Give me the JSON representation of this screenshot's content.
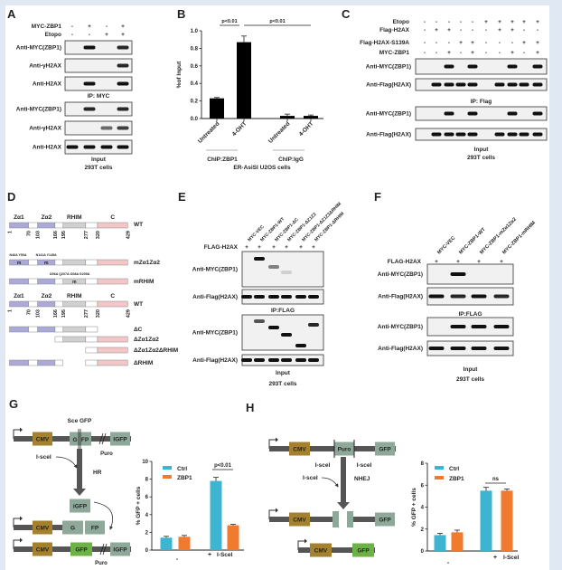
{
  "panels": {
    "A": {
      "label": "A",
      "conditions": [
        {
          "name": "MYC-ZBP1",
          "values": [
            "-",
            "+",
            "-",
            "+"
          ]
        },
        {
          "name": "Etopo",
          "values": [
            "-",
            "-",
            "+",
            "+"
          ]
        }
      ],
      "ip_blots": [
        {
          "label": "Anti-MYC(ZBP1)",
          "bands": [
            0,
            1,
            0,
            0.9
          ]
        },
        {
          "label": "Anti-γH2AX",
          "bands": [
            0,
            0,
            0,
            0.9
          ]
        },
        {
          "label": "Anti-H2AX",
          "bands": [
            0,
            1,
            0,
            1
          ]
        }
      ],
      "ip_caption": "IP: MYC",
      "input_blots": [
        {
          "label": "Anti-MYC(ZBP1)",
          "bands": [
            0,
            0.9,
            0,
            0.9
          ]
        },
        {
          "label": "Anti-γH2AX",
          "bands": [
            0,
            0,
            0.6,
            0.8
          ]
        },
        {
          "label": "Anti-H2AX",
          "bands": [
            1,
            1,
            1,
            1
          ]
        }
      ],
      "input_caption": "Input",
      "cells": "293T cells"
    },
    "B": {
      "label": "B",
      "group_labels": [
        "ChIP:ZBP1",
        "ChIP:IgG"
      ],
      "cells": "ER-AsiSI U2OS cells",
      "significance": [
        "p<0.01",
        "p<0.01"
      ]
    },
    "C": {
      "label": "C",
      "conditions": [
        {
          "name": "Etopo",
          "values": [
            "-",
            "-",
            "-",
            "-",
            "-",
            "+",
            "+",
            "+",
            "+",
            "+"
          ]
        },
        {
          "name": "Flag-H2AX",
          "values": [
            "-",
            "+",
            "+",
            "-",
            "-",
            "-",
            "+",
            "+",
            "-",
            "-"
          ]
        },
        {
          "name": "Flag-H2AX-S139A",
          "values": [
            "-",
            "-",
            "-",
            "+",
            "+",
            "-",
            "-",
            "-",
            "+",
            "+"
          ]
        },
        {
          "name": "MYC-ZBP1",
          "values": [
            "-",
            "-",
            "+",
            "-",
            "+",
            "-",
            "-",
            "+",
            "-",
            "+"
          ]
        }
      ],
      "ip_blots": [
        {
          "label": "Anti-MYC(ZBP1)",
          "bands": [
            0,
            0,
            1,
            0,
            1,
            0,
            0,
            1,
            0,
            1
          ]
        },
        {
          "label": "Anti-Flag(H2AX)",
          "bands": [
            0,
            1,
            1,
            1,
            1,
            0,
            1,
            1,
            1,
            1
          ]
        }
      ],
      "ip_caption": "IP: Flag",
      "input_blots": [
        {
          "label": "Anti-MYC(ZBP1)",
          "bands": [
            0,
            0,
            1,
            0,
            1,
            0,
            0,
            1,
            0,
            1
          ]
        },
        {
          "label": "Anti-Flag(H2AX)",
          "bands": [
            0,
            1,
            1,
            1,
            1,
            0,
            1,
            1,
            1,
            1
          ]
        }
      ],
      "input_caption": "Input",
      "cells": "293T cells"
    },
    "D": {
      "label": "D",
      "domain_names": [
        "Zα1",
        "Zα2",
        "RHIM",
        "C"
      ],
      "boundaries": [
        "1",
        "70",
        "103",
        "166",
        "195",
        "277",
        "320",
        "429"
      ],
      "colors": {
        "zalpha": "#aaa9d8",
        "rhim": "#d0d0d0",
        "c": "#f3c6c8",
        "linker": "#ffffff"
      },
      "mutant_mark": "m",
      "mutations": {
        "za1": "N46A Y50A",
        "za2": "N141A Y145A",
        "rhim": "I206A Q207A I208A G209A"
      },
      "constructs": [
        {
          "name": "WT"
        },
        {
          "name": "mZα1Zα2"
        },
        {
          "name": "mRHIM"
        },
        {
          "name": "WT"
        },
        {
          "name": "ΔC"
        },
        {
          "name": "ΔZα1Zα2"
        },
        {
          "name": "ΔZα1Zα2ΔRHIM"
        },
        {
          "name": "ΔRHIM"
        }
      ]
    },
    "E": {
      "label": "E",
      "lanes": [
        "MYC-VEC",
        "MYC-ZBP1-WT",
        "MYC-ZBP1-ΔC",
        "MYC-ZBP1-ΔZ1Z2",
        "MYC-ZBP1-ΔZ1Z2ΔRHIM",
        "MYC-ZBP1-ΔRHIM"
      ],
      "flag_row": {
        "name": "FLAG-H2AX",
        "values": [
          "+",
          "+",
          "+",
          "+",
          "+",
          "+"
        ]
      },
      "ip_blots": [
        {
          "label": "Anti-MYC(ZBP1)",
          "bands": [
            0,
            1,
            0.5,
            0.15,
            0,
            0
          ]
        },
        {
          "label": "Anti-Flag(H2AX)",
          "bands": [
            1,
            1,
            1,
            1,
            1,
            1
          ]
        }
      ],
      "ip_caption": "IP:FLAG",
      "input_blots": [
        {
          "label": "Anti-MYC(ZBP1)",
          "bands": [
            0,
            0.7,
            1,
            1,
            1,
            0.9
          ]
        },
        {
          "label": "Anti-Flag(H2AX)",
          "bands": [
            1,
            1,
            1,
            1,
            1,
            1
          ]
        }
      ],
      "input_caption": "Input",
      "cells": "293T cells"
    },
    "F": {
      "label": "F",
      "lanes": [
        "MYC-VEC",
        "MYC-ZBP1-WT",
        "MYC-ZBP1-mZα1Zα2",
        "MYC-ZBP1-mRHIM"
      ],
      "flag_row": {
        "name": "FLAG-H2AX",
        "values": [
          "+",
          "+",
          "+",
          "+"
        ]
      },
      "ip_blots": [
        {
          "label": "Anti-MYC(ZBP1)",
          "bands": [
            0,
            1,
            0,
            0
          ]
        },
        {
          "label": "Anti-Flag(H2AX)",
          "bands": [
            1,
            0.9,
            1,
            0.9
          ]
        }
      ],
      "ip_caption": "IP:FLAG",
      "input_blots": [
        {
          "label": "Anti-MYC(ZBP1)",
          "bands": [
            0,
            1,
            1,
            1
          ]
        },
        {
          "label": "Anti-Flag(H2AX)",
          "bands": [
            1,
            1,
            1,
            1
          ]
        }
      ],
      "input_caption": "Input",
      "cells": "293T cells"
    },
    "G": {
      "label": "G",
      "reporter": "Sce GFP",
      "cmv": "CMV",
      "g": "G",
      "fp": "FP",
      "gfp": "GFP",
      "igfp": "iGFP",
      "igfp_right": "IGFP",
      "puro": "Puro",
      "isce": "I-sceI",
      "pathway": "HR",
      "colors": {
        "cmv": "#a3812e",
        "gfp_box": "#8ea899",
        "gfp_active": "#6cb246",
        "backbone": "#555555"
      }
    },
    "H": {
      "label": "H",
      "cmv": "CMV",
      "puro": "Puro",
      "gfp": "GFP",
      "isce": "I-sceI",
      "pathway": "NHEJ"
    }
  },
  "chart_data": [
    {
      "panel": "B",
      "type": "bar",
      "categories": [
        "Untreated",
        "4-OHT",
        "Untreated",
        "4-OHT"
      ],
      "groups": [
        "ChIP:ZBP1",
        "ChIP:ZBP1",
        "ChIP:IgG",
        "ChIP:IgG"
      ],
      "values": [
        0.23,
        0.87,
        0.03,
        0.03
      ],
      "errors": [
        0.01,
        0.07,
        0.02,
        0.01
      ],
      "ylabel": "%of Input",
      "ylim": [
        0,
        1.0
      ],
      "yticks": [
        "0.0",
        "0.2",
        "0.4",
        "0.6",
        "0.8",
        "1.0"
      ],
      "color": "#000000",
      "annotations": [
        "p<0.01",
        "p<0.01"
      ]
    },
    {
      "panel": "G",
      "type": "bar",
      "categories": [
        "-",
        "+"
      ],
      "xlabel": "I-SceI",
      "series": [
        {
          "name": "Ctrl",
          "values": [
            1.4,
            7.8
          ],
          "errors": [
            0.15,
            0.4
          ],
          "color": "#3db4d0"
        },
        {
          "name": "ZBP1",
          "values": [
            1.5,
            2.8
          ],
          "errors": [
            0.15,
            0.1
          ],
          "color": "#f07b2f"
        }
      ],
      "ylabel": "% GFP + cells",
      "ylim": [
        0,
        10
      ],
      "yticks": [
        "0",
        "2",
        "4",
        "6",
        "8",
        "10"
      ],
      "legend": "top-left",
      "annotations": [
        "p<0.01"
      ]
    },
    {
      "panel": "H",
      "type": "bar",
      "categories": [
        "-",
        "+"
      ],
      "xlabel": "I-SceI",
      "series": [
        {
          "name": "Ctrl",
          "values": [
            1.45,
            5.5
          ],
          "errors": [
            0.15,
            0.3
          ],
          "color": "#3db4d0"
        },
        {
          "name": "ZBP1",
          "values": [
            1.7,
            5.5
          ],
          "errors": [
            0.2,
            0.15
          ],
          "color": "#f07b2f"
        }
      ],
      "ylabel": "% GFP + cells",
      "ylim": [
        0,
        8
      ],
      "yticks": [
        "0",
        "2",
        "4",
        "6",
        "8"
      ],
      "legend": "top-left",
      "annotations": [
        "ns"
      ]
    }
  ]
}
